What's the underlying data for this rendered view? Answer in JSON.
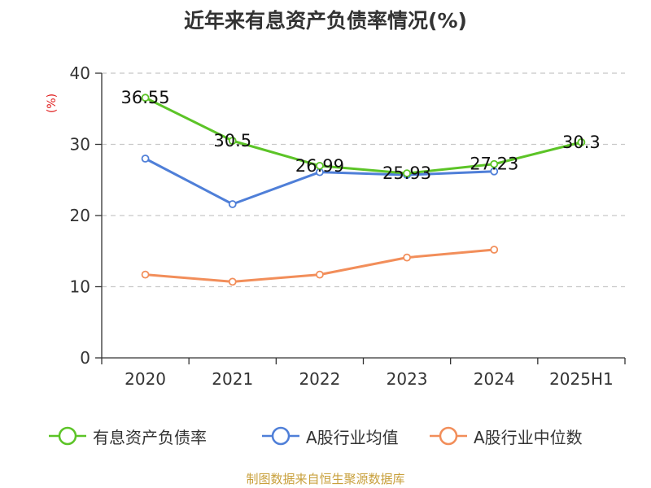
{
  "chart_data": {
    "type": "line",
    "title": "近年来有息资产负债率情况(%)",
    "ylabel": "(%)",
    "ylim": [
      0,
      40
    ],
    "y_ticks": [
      "0",
      "10",
      "20",
      "30",
      "40"
    ],
    "categories": [
      "2020",
      "2021",
      "2022",
      "2023",
      "2024",
      "2025H1"
    ],
    "grid": true,
    "legend_position": "bottom",
    "series": [
      {
        "name": "有息资产负债率",
        "color": "#5cc427",
        "values": [
          36.55,
          30.5,
          26.99,
          25.93,
          27.23,
          30.3
        ],
        "labels": [
          "36.55",
          "30.5",
          "26.99",
          "25.93",
          "27.23",
          "30.3"
        ]
      },
      {
        "name": "A股行业均值",
        "color": "#4f7fd8",
        "values": [
          28.0,
          21.6,
          26.1,
          25.7,
          26.2,
          null
        ],
        "labels": []
      },
      {
        "name": "A股行业中位数",
        "color": "#f28e5a",
        "values": [
          11.7,
          10.7,
          11.7,
          14.1,
          15.2,
          null
        ],
        "labels": []
      }
    ]
  },
  "source": "制图数据来自恒生聚源数据库"
}
